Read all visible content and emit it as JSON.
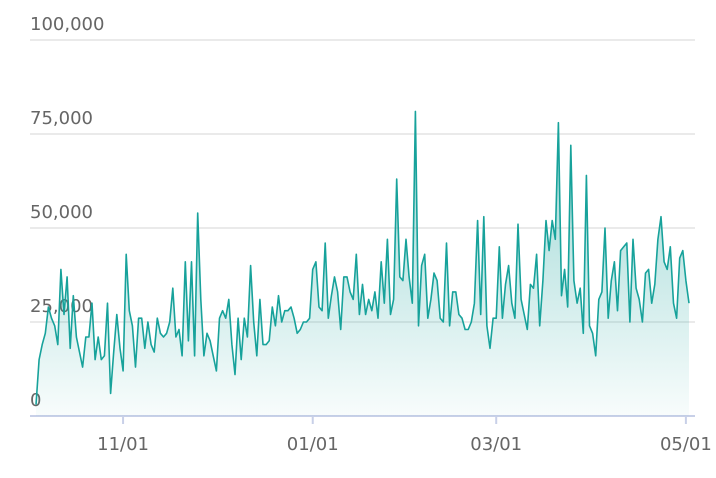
{
  "chart_data": {
    "type": "area",
    "x": [
      "10/04",
      "10/05",
      "10/06",
      "10/07",
      "10/08",
      "10/09",
      "10/10",
      "10/11",
      "10/12",
      "10/13",
      "10/14",
      "10/15",
      "10/16",
      "10/17",
      "10/18",
      "10/19",
      "10/20",
      "10/21",
      "10/22",
      "10/23",
      "10/24",
      "10/25",
      "10/26",
      "10/27",
      "10/28",
      "10/29",
      "10/30",
      "10/31",
      "11/01",
      "11/02",
      "11/03",
      "11/04",
      "11/05",
      "11/06",
      "11/07",
      "11/08",
      "11/09",
      "11/10",
      "11/11",
      "11/12",
      "11/13",
      "11/14",
      "11/15",
      "11/16",
      "11/17",
      "11/18",
      "11/19",
      "11/20",
      "11/21",
      "11/22",
      "11/23",
      "11/24",
      "11/25",
      "11/26",
      "11/27",
      "11/28",
      "11/29",
      "11/30",
      "12/01",
      "12/02",
      "12/03",
      "12/04",
      "12/05",
      "12/06",
      "12/07",
      "12/08",
      "12/09",
      "12/10",
      "12/11",
      "12/12",
      "12/13",
      "12/14",
      "12/15",
      "12/16",
      "12/17",
      "12/18",
      "12/19",
      "12/20",
      "12/21",
      "12/22",
      "12/23",
      "12/24",
      "12/25",
      "12/26",
      "12/27",
      "12/28",
      "12/29",
      "12/30",
      "12/31",
      "01/01",
      "01/02",
      "01/03",
      "01/04",
      "01/05",
      "01/06",
      "01/07",
      "01/08",
      "01/09",
      "01/10",
      "01/11",
      "01/12",
      "01/13",
      "01/14",
      "01/15",
      "01/16",
      "01/17",
      "01/18",
      "01/19",
      "01/20",
      "01/21",
      "01/22",
      "01/23",
      "01/24",
      "01/25",
      "01/26",
      "01/27",
      "01/28",
      "01/29",
      "01/30",
      "01/31",
      "02/01",
      "02/02",
      "02/03",
      "02/04",
      "02/05",
      "02/06",
      "02/07",
      "02/08",
      "02/09",
      "02/10",
      "02/11",
      "02/12",
      "02/13",
      "02/14",
      "02/15",
      "02/16",
      "02/17",
      "02/18",
      "02/19",
      "02/20",
      "02/21",
      "02/22",
      "02/23",
      "02/24",
      "02/25",
      "02/26",
      "02/27",
      "02/28",
      "03/01",
      "03/02",
      "03/03",
      "03/04",
      "03/05",
      "03/06",
      "03/07",
      "03/08",
      "03/09",
      "03/10",
      "03/11",
      "03/12",
      "03/13",
      "03/14",
      "03/15",
      "03/16",
      "03/17",
      "03/18",
      "03/19",
      "03/20",
      "03/21",
      "03/22",
      "03/23",
      "03/24",
      "03/25",
      "03/26",
      "03/27",
      "03/28",
      "03/29",
      "03/30",
      "03/31",
      "04/01",
      "04/02",
      "04/03",
      "04/04",
      "04/05",
      "04/06",
      "04/07",
      "04/08",
      "04/09",
      "04/10",
      "04/11",
      "04/12",
      "04/13",
      "04/14",
      "04/15",
      "04/16",
      "04/17",
      "04/18",
      "04/19",
      "04/20",
      "04/21",
      "04/22",
      "04/23",
      "04/24",
      "04/25",
      "04/26",
      "04/27",
      "04/28",
      "04/29",
      "04/30",
      "05/01",
      "05/02"
    ],
    "series": [
      {
        "color": "#17a29b",
        "values": [
          3000,
          15000,
          19000,
          22000,
          29000,
          26000,
          24000,
          19000,
          39000,
          27000,
          37000,
          18000,
          32000,
          21000,
          17000,
          13000,
          21000,
          21000,
          30000,
          15000,
          21000,
          15000,
          16000,
          30000,
          6000,
          17000,
          27000,
          18000,
          12000,
          43000,
          28000,
          24000,
          13000,
          26000,
          26000,
          18000,
          25000,
          19000,
          17000,
          26000,
          22000,
          21000,
          22000,
          25000,
          34000,
          21000,
          23000,
          16000,
          41000,
          20000,
          41000,
          16000,
          54000,
          31000,
          16000,
          22000,
          20000,
          16000,
          12000,
          26000,
          28000,
          26000,
          31000,
          19000,
          11000,
          26000,
          15000,
          26000,
          21000,
          40000,
          25000,
          16000,
          31000,
          19000,
          19000,
          20000,
          29000,
          24000,
          32000,
          25000,
          28000,
          28000,
          29000,
          26000,
          22000,
          23000,
          25000,
          25000,
          26000,
          39000,
          41000,
          29000,
          28000,
          46000,
          26000,
          32000,
          37000,
          33000,
          23000,
          37000,
          37000,
          33000,
          31000,
          43000,
          27000,
          35000,
          27000,
          31000,
          28000,
          33000,
          26000,
          41000,
          30000,
          47000,
          27000,
          31000,
          63000,
          37000,
          36000,
          47000,
          37000,
          30000,
          81000,
          24000,
          40000,
          43000,
          26000,
          31000,
          38000,
          36000,
          26000,
          25000,
          46000,
          24000,
          33000,
          33000,
          27000,
          26000,
          23000,
          23000,
          25000,
          30000,
          52000,
          27000,
          53000,
          24000,
          18000,
          26000,
          26000,
          45000,
          26000,
          35000,
          40000,
          30000,
          26000,
          51000,
          31000,
          27000,
          23000,
          35000,
          34000,
          43000,
          24000,
          36000,
          52000,
          44000,
          52000,
          47000,
          78000,
          32000,
          39000,
          29000,
          72000,
          36000,
          30000,
          34000,
          22000,
          64000,
          24000,
          22000,
          16000,
          31000,
          33000,
          50000,
          26000,
          36000,
          41000,
          28000,
          44000,
          45000,
          46000,
          25000,
          47000,
          34000,
          31000,
          25000,
          38000,
          39000,
          30000,
          35000,
          47000,
          53000,
          41000,
          39000,
          45000,
          30000,
          26000,
          42000,
          44000,
          36000,
          30000
        ]
      }
    ],
    "xticks": [
      "11/01",
      "01/01",
      "03/01",
      "05/01"
    ],
    "ylim": [
      0,
      100000
    ],
    "yticks": [
      0,
      {
        "value": 25000,
        "label": "25,000"
      },
      {
        "value": 50000,
        "label": "50,000"
      },
      {
        "value": 75000,
        "label": "75,000"
      },
      {
        "value": 100000,
        "label": "100,000"
      }
    ],
    "grid": true
  }
}
